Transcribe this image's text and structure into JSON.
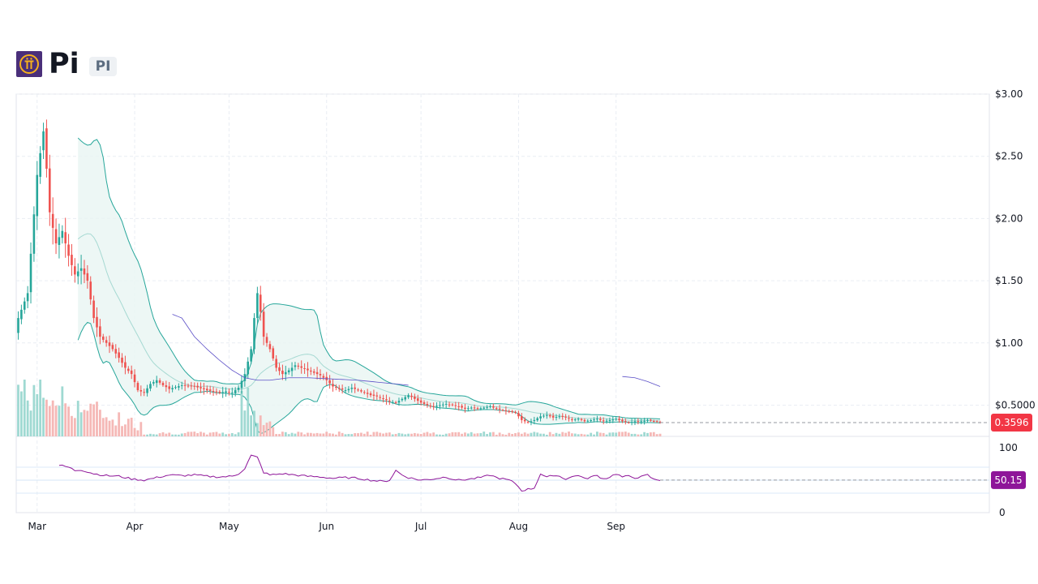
{
  "header": {
    "symbol_name": "Pi",
    "ticker": "PI"
  },
  "colors": {
    "up": "#26a69a",
    "down": "#ef5350",
    "band": "#26a69a",
    "band_fill": "#e8f5f3",
    "ma": "#5b4fc7",
    "rsi": "#8e1599",
    "last_price_tag": "#f23645",
    "rsi_tag": "#8e1599",
    "logo_bg": "#4a2f7a"
  },
  "icons": {
    "logo": "pi-network-logo-icon"
  },
  "chart_data": {
    "type": "candlestick",
    "price_axis": {
      "ticks": [
        "$3.00",
        "$2.50",
        "$2.00",
        "$1.50",
        "$1.00",
        "$0.5000"
      ],
      "tick_values": [
        3.0,
        2.5,
        2.0,
        1.5,
        1.0,
        0.5
      ],
      "ylim": [
        0.1,
        3.0
      ]
    },
    "rsi_axis": {
      "ticks": [
        "100",
        "0"
      ],
      "tick_values": [
        100,
        0
      ],
      "ylim": [
        0,
        100
      ],
      "guide_lines": [
        70,
        50,
        30
      ]
    },
    "x_axis": {
      "labels": [
        "Mar",
        "Apr",
        "May",
        "Jun",
        "Jul",
        "Aug",
        "Sep"
      ],
      "label_day_index": [
        6,
        37,
        67,
        98,
        128,
        159,
        190
      ]
    },
    "last_price_tag": "0.3596",
    "rsi_value_tag": "50.15",
    "last_price": 0.3596,
    "rsi_last": 50.15,
    "anchors_close": [
      [
        0,
        1.2
      ],
      [
        3,
        1.4
      ],
      [
        6,
        2.35
      ],
      [
        8,
        2.7
      ],
      [
        9,
        2.4
      ],
      [
        10,
        2.05
      ],
      [
        12,
        1.8
      ],
      [
        14,
        1.9
      ],
      [
        16,
        1.7
      ],
      [
        18,
        1.55
      ],
      [
        20,
        1.6
      ],
      [
        22,
        1.5
      ],
      [
        24,
        1.2
      ],
      [
        26,
        1.05
      ],
      [
        28,
        1.0
      ],
      [
        30,
        0.95
      ],
      [
        32,
        0.88
      ],
      [
        34,
        0.8
      ],
      [
        36,
        0.75
      ],
      [
        38,
        0.62
      ],
      [
        40,
        0.6
      ],
      [
        42,
        0.67
      ],
      [
        44,
        0.7
      ],
      [
        46,
        0.66
      ],
      [
        48,
        0.63
      ],
      [
        52,
        0.66
      ],
      [
        56,
        0.65
      ],
      [
        60,
        0.62
      ],
      [
        64,
        0.6
      ],
      [
        66,
        0.61
      ],
      [
        68,
        0.6
      ],
      [
        70,
        0.64
      ],
      [
        72,
        0.75
      ],
      [
        74,
        0.95
      ],
      [
        75,
        1.2
      ],
      [
        76,
        1.4
      ],
      [
        77,
        1.25
      ],
      [
        78,
        1.05
      ],
      [
        80,
        0.95
      ],
      [
        82,
        0.8
      ],
      [
        84,
        0.75
      ],
      [
        86,
        0.78
      ],
      [
        88,
        0.82
      ],
      [
        90,
        0.8
      ],
      [
        92,
        0.78
      ],
      [
        94,
        0.76
      ],
      [
        96,
        0.74
      ],
      [
        98,
        0.7
      ],
      [
        100,
        0.65
      ],
      [
        102,
        0.63
      ],
      [
        104,
        0.62
      ],
      [
        106,
        0.64
      ],
      [
        108,
        0.62
      ],
      [
        110,
        0.6
      ],
      [
        112,
        0.58
      ],
      [
        114,
        0.57
      ],
      [
        116,
        0.55
      ],
      [
        118,
        0.53
      ],
      [
        120,
        0.52
      ],
      [
        122,
        0.55
      ],
      [
        124,
        0.58
      ],
      [
        126,
        0.55
      ],
      [
        128,
        0.52
      ],
      [
        130,
        0.5
      ],
      [
        132,
        0.49
      ],
      [
        134,
        0.5
      ],
      [
        136,
        0.51
      ],
      [
        138,
        0.5
      ],
      [
        140,
        0.49
      ],
      [
        142,
        0.47
      ],
      [
        144,
        0.48
      ],
      [
        146,
        0.47
      ],
      [
        148,
        0.48
      ],
      [
        150,
        0.49
      ],
      [
        152,
        0.47
      ],
      [
        154,
        0.46
      ],
      [
        156,
        0.45
      ],
      [
        158,
        0.44
      ],
      [
        160,
        0.38
      ],
      [
        162,
        0.36
      ],
      [
        164,
        0.38
      ],
      [
        166,
        0.41
      ],
      [
        168,
        0.42
      ],
      [
        170,
        0.4
      ],
      [
        172,
        0.41
      ],
      [
        174,
        0.4
      ],
      [
        176,
        0.38
      ],
      [
        178,
        0.39
      ],
      [
        180,
        0.37
      ],
      [
        182,
        0.38
      ],
      [
        184,
        0.39
      ],
      [
        186,
        0.37
      ],
      [
        188,
        0.38
      ],
      [
        190,
        0.39
      ],
      [
        192,
        0.37
      ],
      [
        194,
        0.36
      ],
      [
        196,
        0.37
      ],
      [
        198,
        0.37
      ],
      [
        200,
        0.38
      ],
      [
        202,
        0.37
      ],
      [
        204,
        0.3596
      ]
    ],
    "anchors_rsi": [
      [
        13,
        73
      ],
      [
        16,
        70
      ],
      [
        18,
        65
      ],
      [
        20,
        66
      ],
      [
        24,
        60
      ],
      [
        28,
        57
      ],
      [
        32,
        56
      ],
      [
        36,
        52
      ],
      [
        40,
        50
      ],
      [
        44,
        54
      ],
      [
        48,
        58
      ],
      [
        52,
        57
      ],
      [
        56,
        58
      ],
      [
        60,
        56
      ],
      [
        64,
        55
      ],
      [
        68,
        56
      ],
      [
        70,
        60
      ],
      [
        72,
        68
      ],
      [
        74,
        88
      ],
      [
        76,
        85
      ],
      [
        78,
        62
      ],
      [
        80,
        58
      ],
      [
        84,
        60
      ],
      [
        88,
        58
      ],
      [
        92,
        56
      ],
      [
        96,
        55
      ],
      [
        100,
        53
      ],
      [
        104,
        54
      ],
      [
        108,
        53
      ],
      [
        112,
        50
      ],
      [
        116,
        48
      ],
      [
        118,
        50
      ],
      [
        120,
        65
      ],
      [
        122,
        58
      ],
      [
        124,
        54
      ],
      [
        126,
        52
      ],
      [
        128,
        50
      ],
      [
        132,
        52
      ],
      [
        136,
        55
      ],
      [
        138,
        52
      ],
      [
        140,
        50
      ],
      [
        144,
        52
      ],
      [
        148,
        55
      ],
      [
        150,
        58
      ],
      [
        152,
        54
      ],
      [
        156,
        50
      ],
      [
        158,
        45
      ],
      [
        160,
        34
      ],
      [
        162,
        36
      ],
      [
        164,
        38
      ],
      [
        166,
        60
      ],
      [
        168,
        54
      ],
      [
        170,
        58
      ],
      [
        172,
        56
      ],
      [
        174,
        52
      ],
      [
        176,
        55
      ],
      [
        178,
        58
      ],
      [
        180,
        52
      ],
      [
        182,
        55
      ],
      [
        184,
        57
      ],
      [
        186,
        52
      ],
      [
        188,
        55
      ],
      [
        190,
        60
      ],
      [
        192,
        55
      ],
      [
        194,
        56
      ],
      [
        196,
        54
      ],
      [
        198,
        55
      ],
      [
        200,
        58
      ],
      [
        202,
        51
      ],
      [
        204,
        50.15
      ]
    ],
    "anchors_ma": [
      [
        49,
        1.23
      ],
      [
        52,
        1.2
      ],
      [
        56,
        1.05
      ],
      [
        60,
        0.95
      ],
      [
        64,
        0.86
      ],
      [
        68,
        0.78
      ],
      [
        72,
        0.72
      ],
      [
        76,
        0.7
      ],
      [
        80,
        0.7
      ],
      [
        86,
        0.72
      ],
      [
        92,
        0.72
      ],
      [
        100,
        0.71
      ],
      [
        108,
        0.7
      ],
      [
        116,
        0.68
      ],
      [
        124,
        0.66
      ]
    ]
  }
}
